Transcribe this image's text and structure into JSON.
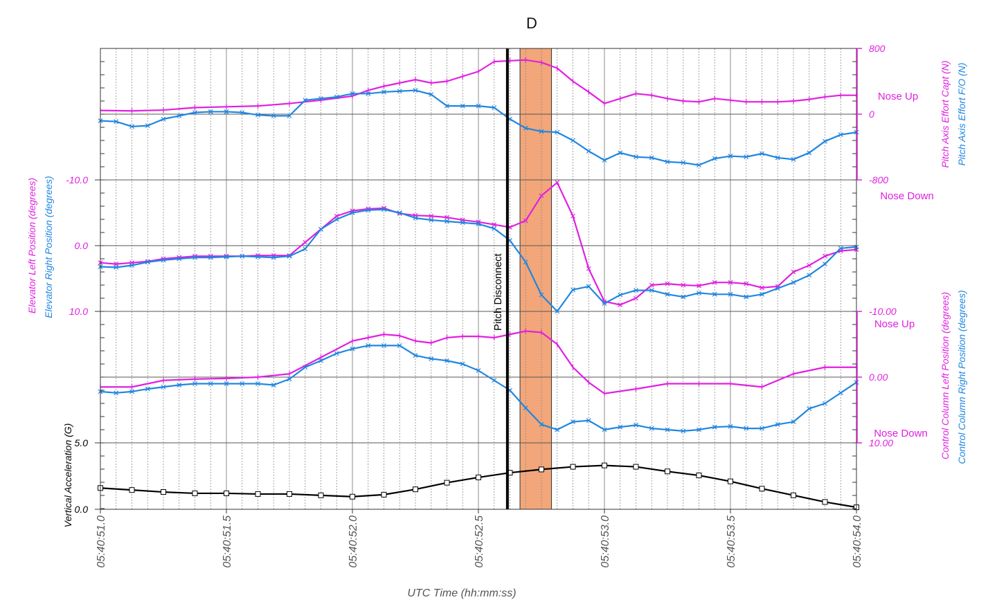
{
  "title": "D",
  "colors": {
    "magenta": "#e020e0",
    "blue": "#1f86e0",
    "black": "#000000",
    "highlight": "#f2a679",
    "highlight_edge": "#333333"
  },
  "chart_data": {
    "type": "line",
    "title": "D",
    "x_axis": {
      "label": "UTC Time (hh:mm:ss)",
      "tick_values": [
        51.0,
        51.5,
        52.0,
        52.5,
        53.0,
        53.5,
        54.0
      ],
      "tick_labels": [
        "05:40:51.0",
        "05:40:51.5",
        "05:40:52.0",
        "05:40:52.5",
        "05:40:53.0",
        "05:40:53.5",
        "05:40:54.0"
      ],
      "range": [
        51.0,
        54.0
      ],
      "minor_grid_step": 0.0625,
      "major_grid_step": 0.5
    },
    "events": {
      "pitch_disconnect": {
        "label": "Pitch Disconnect",
        "x": 52.615
      },
      "highlight_band": {
        "x_start": 52.665,
        "x_end": 52.79
      }
    },
    "panels": [
      {
        "name": "pitch-axis-effort",
        "y_range": [
          -800,
          800
        ],
        "y_inverted": false,
        "right_ticks": [
          {
            "v": 800,
            "label": "800"
          },
          {
            "v": 0,
            "label": "0"
          },
          {
            "v": -800,
            "label": "-800"
          }
        ],
        "right_labels": [
          "Pitch Axis Effort Capt (N)",
          "Pitch Axis Effort F/O (N)"
        ],
        "annotations": [
          "Nose Up",
          "Nose Down"
        ],
        "series": [
          {
            "name": "Pitch Axis Effort Capt (N)",
            "color": "magenta",
            "marker": "|",
            "x": [
              51.0,
              51.125,
              51.25,
              51.375,
              51.5,
              51.625,
              51.75,
              51.875,
              52.0,
              52.0625,
              52.125,
              52.1875,
              52.25,
              52.3125,
              52.375,
              52.4375,
              52.5,
              52.5625,
              52.625,
              52.6875,
              52.75,
              52.8125,
              52.875,
              52.9375,
              53.0,
              53.0625,
              53.125,
              53.1875,
              53.25,
              53.3125,
              53.375,
              53.4375,
              53.5,
              53.5625,
              53.625,
              53.6875,
              53.75,
              53.8125,
              53.875,
              53.9375,
              54.0
            ],
            "y": [
              45,
              40,
              50,
              80,
              90,
              100,
              130,
              170,
              220,
              290,
              340,
              380,
              420,
              380,
              400,
              460,
              520,
              640,
              650,
              660,
              630,
              560,
              400,
              270,
              130,
              190,
              250,
              230,
              190,
              160,
              150,
              190,
              170,
              150,
              150,
              150,
              160,
              180,
              210,
              230,
              230
            ]
          },
          {
            "name": "Pitch Axis Effort F/O (N)",
            "color": "blue",
            "marker": "x",
            "x": [
              51.0,
              51.0625,
              51.125,
              51.1875,
              51.25,
              51.3125,
              51.375,
              51.4375,
              51.5,
              51.5625,
              51.625,
              51.6875,
              51.75,
              51.8125,
              51.875,
              51.9375,
              52.0,
              52.0625,
              52.125,
              52.1875,
              52.25,
              52.3125,
              52.375,
              52.4375,
              52.5,
              52.5625,
              52.625,
              52.6875,
              52.75,
              52.8125,
              52.875,
              52.9375,
              53.0,
              53.0625,
              53.125,
              53.1875,
              53.25,
              53.3125,
              53.375,
              53.4375,
              53.5,
              53.5625,
              53.625,
              53.6875,
              53.75,
              53.8125,
              53.875,
              53.9375,
              54.0
            ],
            "y": [
              -80,
              -90,
              -150,
              -140,
              -60,
              -20,
              20,
              30,
              30,
              20,
              -10,
              -20,
              -20,
              170,
              190,
              210,
              250,
              250,
              270,
              280,
              290,
              240,
              100,
              100,
              100,
              80,
              -60,
              -170,
              -210,
              -220,
              -320,
              -450,
              -560,
              -470,
              -520,
              -530,
              -580,
              -590,
              -620,
              -540,
              -510,
              -520,
              -480,
              -530,
              -550,
              -470,
              -330,
              -250,
              -220
            ]
          }
        ]
      },
      {
        "name": "elevator-position",
        "y_range": [
          -10,
          10
        ],
        "y_inverted": true,
        "left_ticks": [
          {
            "v": -10,
            "label": "-10.0"
          },
          {
            "v": 0,
            "label": "0.0"
          },
          {
            "v": 10,
            "label": "10.0"
          }
        ],
        "left_labels": [
          "Elevator Left Position (degrees)",
          "Elevator Right Position (degrees)"
        ],
        "series": [
          {
            "name": "Elevator Left Position (degrees)",
            "color": "magenta",
            "marker": "x",
            "x": [
              51.0,
              51.0625,
              51.125,
              51.1875,
              51.25,
              51.3125,
              51.375,
              51.4375,
              51.5,
              51.5625,
              51.625,
              51.6875,
              51.75,
              51.8125,
              51.875,
              51.9375,
              52.0,
              52.0625,
              52.125,
              52.1875,
              52.25,
              52.3125,
              52.375,
              52.4375,
              52.5,
              52.5625,
              52.625,
              52.6875,
              52.75,
              52.8125,
              52.875,
              52.9375,
              53.0,
              53.0625,
              53.125,
              53.1875,
              53.25,
              53.3125,
              53.375,
              53.4375,
              53.5,
              53.5625,
              53.625,
              53.6875,
              53.75,
              53.8125,
              53.875,
              53.9375,
              54.0
            ],
            "y": [
              2.6,
              2.8,
              2.6,
              2.4,
              2.0,
              1.8,
              1.6,
              1.6,
              1.6,
              1.6,
              1.5,
              1.5,
              1.5,
              -0.5,
              -2.5,
              -4.5,
              -5.3,
              -5.6,
              -5.7,
              -4.9,
              -4.6,
              -4.5,
              -4.3,
              -3.9,
              -3.6,
              -3.2,
              -2.8,
              -3.8,
              -7.6,
              -9.6,
              -4.5,
              3.5,
              8.5,
              9.0,
              8.0,
              6.0,
              5.8,
              6.0,
              6.1,
              5.6,
              5.6,
              5.8,
              6.4,
              6.2,
              4.0,
              3.0,
              1.6,
              0.8,
              0.6
            ]
          },
          {
            "name": "Elevator Right Position (degrees)",
            "color": "blue",
            "marker": "x",
            "x": [
              51.0,
              51.0625,
              51.125,
              51.1875,
              51.25,
              51.3125,
              51.375,
              51.4375,
              51.5,
              51.5625,
              51.625,
              51.6875,
              51.75,
              51.8125,
              51.875,
              51.9375,
              52.0,
              52.0625,
              52.125,
              52.1875,
              52.25,
              52.3125,
              52.375,
              52.4375,
              52.5,
              52.5625,
              52.625,
              52.6875,
              52.75,
              52.8125,
              52.875,
              52.9375,
              53.0,
              53.0625,
              53.125,
              53.1875,
              53.25,
              53.3125,
              53.375,
              53.4375,
              53.5,
              53.5625,
              53.625,
              53.6875,
              53.75,
              53.8125,
              53.875,
              53.9375,
              54.0
            ],
            "y": [
              3.2,
              3.3,
              3.0,
              2.5,
              2.2,
              2.0,
              1.8,
              1.8,
              1.7,
              1.6,
              1.7,
              1.8,
              1.6,
              0.5,
              -2.5,
              -4.0,
              -5.0,
              -5.4,
              -5.5,
              -5.0,
              -4.2,
              -3.9,
              -3.7,
              -3.5,
              -3.3,
              -2.6,
              -0.8,
              2.5,
              7.5,
              10.0,
              6.7,
              6.2,
              8.8,
              7.5,
              6.8,
              6.8,
              7.4,
              7.8,
              7.2,
              7.4,
              7.4,
              7.8,
              7.4,
              6.5,
              5.6,
              4.5,
              2.8,
              0.4,
              0.2
            ]
          }
        ]
      },
      {
        "name": "control-column-position",
        "y_range": [
          -10,
          10
        ],
        "y_inverted": true,
        "right_ticks": [
          {
            "v": -10,
            "label": "-10.00"
          },
          {
            "v": 0,
            "label": "0.00"
          },
          {
            "v": 10,
            "label": "10.00"
          }
        ],
        "right_labels": [
          "Control Column Left Position (degrees)",
          "Control Column Right Position (degrees)"
        ],
        "annotations": [
          "Nose Up",
          "Nose Down"
        ],
        "series": [
          {
            "name": "Control Column Left Position (degrees)",
            "color": "magenta",
            "marker": "|",
            "x": [
              51.0,
              51.125,
              51.25,
              51.375,
              51.5,
              51.625,
              51.75,
              51.875,
              52.0,
              52.0625,
              52.125,
              52.1875,
              52.25,
              52.3125,
              52.375,
              52.4375,
              52.5,
              52.5625,
              52.625,
              52.6875,
              52.75,
              52.8125,
              52.875,
              52.9375,
              53.0,
              53.125,
              53.25,
              53.375,
              53.5,
              53.625,
              53.75,
              53.875,
              54.0
            ],
            "y": [
              1.5,
              1.5,
              0.5,
              0.3,
              0.2,
              0.0,
              -0.5,
              -3.0,
              -5.5,
              -6.0,
              -6.5,
              -6.3,
              -5.5,
              -5.2,
              -6.0,
              -6.2,
              -6.2,
              -6.0,
              -6.5,
              -7.0,
              -6.8,
              -5.0,
              -1.5,
              0.8,
              2.5,
              1.8,
              1.0,
              1.0,
              1.0,
              1.5,
              -0.5,
              -1.5,
              -1.5
            ]
          },
          {
            "name": "Control Column Right Position (degrees)",
            "color": "blue",
            "marker": "x",
            "x": [
              51.0,
              51.0625,
              51.125,
              51.1875,
              51.25,
              51.3125,
              51.375,
              51.4375,
              51.5,
              51.5625,
              51.625,
              51.6875,
              51.75,
              51.8125,
              51.875,
              51.9375,
              52.0,
              52.0625,
              52.125,
              52.1875,
              52.25,
              52.3125,
              52.375,
              52.4375,
              52.5,
              52.5625,
              52.625,
              52.6875,
              52.75,
              52.8125,
              52.875,
              52.9375,
              53.0,
              53.0625,
              53.125,
              53.1875,
              53.25,
              53.3125,
              53.375,
              53.4375,
              53.5,
              53.5625,
              53.625,
              53.6875,
              53.75,
              53.8125,
              53.875,
              53.9375,
              54.0
            ],
            "y": [
              2.2,
              2.4,
              2.2,
              1.8,
              1.5,
              1.2,
              1.0,
              1.0,
              1.0,
              1.0,
              1.0,
              1.2,
              0.3,
              -1.5,
              -2.5,
              -3.6,
              -4.3,
              -4.8,
              -4.8,
              -4.8,
              -3.3,
              -2.8,
              -2.5,
              -2.0,
              -1.0,
              0.5,
              2.0,
              4.7,
              7.2,
              8.0,
              6.8,
              6.6,
              8.0,
              7.6,
              7.3,
              7.8,
              8.0,
              8.2,
              8.0,
              7.6,
              7.5,
              7.8,
              7.8,
              7.2,
              6.8,
              4.8,
              4.0,
              2.4,
              0.8
            ]
          }
        ]
      },
      {
        "name": "vertical-acceleration",
        "y_range": [
          0,
          5
        ],
        "y_inverted": false,
        "left_ticks": [
          {
            "v": 5,
            "label": "5.0"
          },
          {
            "v": 0,
            "label": "0.0"
          }
        ],
        "left_labels": [
          "Vertical Acceleration (G)"
        ],
        "series": [
          {
            "name": "Vertical Acceleration (G)",
            "color": "black",
            "marker": "square",
            "x": [
              51.0,
              51.125,
              51.25,
              51.375,
              51.5,
              51.625,
              51.75,
              51.875,
              52.0,
              52.125,
              52.25,
              52.375,
              52.5,
              52.625,
              52.75,
              52.875,
              53.0,
              53.125,
              53.25,
              53.375,
              53.5,
              53.625,
              53.75,
              53.875,
              54.0
            ],
            "y": [
              1.6,
              1.45,
              1.3,
              1.2,
              1.2,
              1.15,
              1.15,
              1.05,
              0.95,
              1.1,
              1.5,
              2.0,
              2.4,
              2.75,
              3.0,
              3.2,
              3.3,
              3.2,
              2.85,
              2.55,
              2.1,
              1.55,
              1.05,
              0.55,
              0.15
            ]
          }
        ]
      }
    ]
  }
}
